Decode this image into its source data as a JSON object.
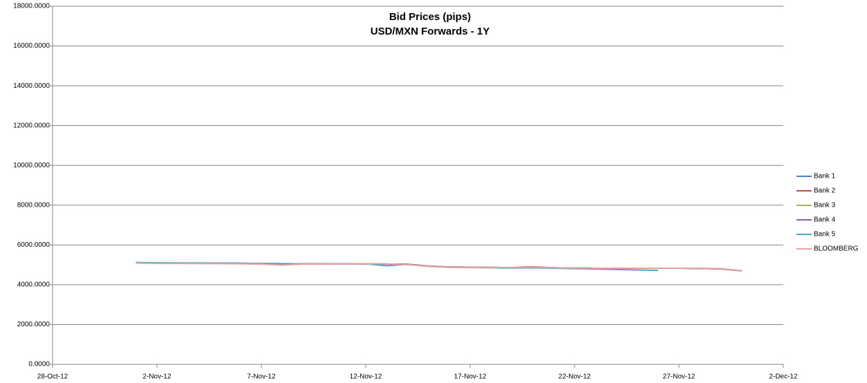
{
  "chart_data": {
    "type": "line",
    "title": "Bid Prices (pips)",
    "subtitle": "USD/MXN Forwards - 1Y",
    "x": [
      "2012-11-01",
      "2012-11-02",
      "2012-11-05",
      "2012-11-06",
      "2012-11-07",
      "2012-11-08",
      "2012-11-09",
      "2012-11-12",
      "2012-11-13",
      "2012-11-14",
      "2012-11-15",
      "2012-11-16",
      "2012-11-19",
      "2012-11-20",
      "2012-11-21",
      "2012-11-22",
      "2012-11-23",
      "2012-11-26",
      "2012-11-27",
      "2012-11-28",
      "2012-11-29",
      "2012-11-30"
    ],
    "series": [
      {
        "name": "Bank 1",
        "color": "#4a7ebb",
        "values": [
          5110,
          5100,
          5090,
          5080,
          5070,
          5060,
          5050,
          5050,
          5040,
          5030,
          4940,
          4890,
          4860,
          4870,
          4850,
          4840,
          4830,
          4830,
          4830,
          4820,
          4800,
          4700
        ]
      },
      {
        "name": "Bank 2",
        "color": "#be4b48",
        "values": [
          5100,
          5090,
          5080,
          5070,
          5060,
          5050,
          5050,
          5050,
          5040,
          5030,
          4940,
          4890,
          4860,
          4910,
          4850,
          4840,
          4830,
          4830,
          4830,
          4820,
          4800,
          4700
        ]
      },
      {
        "name": "Bank 3",
        "color": "#98b954",
        "values": [
          5100,
          5090,
          5080,
          5070,
          5060,
          5050,
          5050,
          5050,
          5040,
          5030,
          4940,
          4890,
          4860,
          4870,
          4850,
          4840,
          4830,
          4830,
          4830,
          4820,
          4800,
          4700
        ]
      },
      {
        "name": "Bank 4",
        "color": "#7d60a0",
        "values": [
          5100,
          5090,
          5080,
          5070,
          5060,
          5050,
          5050,
          5050,
          5040,
          5030,
          4940,
          4890,
          4860,
          4870,
          4850,
          4840,
          4830,
          4830,
          4830,
          4820,
          4800,
          4700
        ]
      },
      {
        "name": "Bank 5",
        "color": "#46aac5",
        "values": [
          5120,
          5100,
          5090,
          5080,
          5070,
          5060,
          5050,
          5050,
          4950,
          5030,
          4920,
          4880,
          4840,
          4850,
          4830,
          4810,
          4790,
          4720,
          null,
          null,
          null,
          null
        ]
      },
      {
        "name": "BLOOMBERG",
        "color": "#e8a0a0",
        "values": [
          5090,
          5070,
          5060,
          5050,
          5040,
          4990,
          5040,
          5050,
          5050,
          5010,
          4930,
          4880,
          4860,
          4890,
          4850,
          4840,
          4830,
          4830,
          4830,
          4830,
          4810,
          4700
        ]
      }
    ],
    "xlim": [
      "2012-10-28",
      "2012-12-02"
    ],
    "xticks": [
      {
        "value": "2012-10-28",
        "label": "28-Oct-12"
      },
      {
        "value": "2012-11-02",
        "label": "2-Nov-12"
      },
      {
        "value": "2012-11-07",
        "label": "7-Nov-12"
      },
      {
        "value": "2012-11-12",
        "label": "12-Nov-12"
      },
      {
        "value": "2012-11-17",
        "label": "17-Nov-12"
      },
      {
        "value": "2012-11-22",
        "label": "22-Nov-12"
      },
      {
        "value": "2012-11-27",
        "label": "27-Nov-12"
      },
      {
        "value": "2012-12-02",
        "label": "2-Dec-12"
      }
    ],
    "ylim": [
      0,
      18000
    ],
    "yticks": [
      {
        "value": 0,
        "label": "0.0000"
      },
      {
        "value": 2000,
        "label": "2000.0000"
      },
      {
        "value": 4000,
        "label": "4000.0000"
      },
      {
        "value": 6000,
        "label": "6000.0000"
      },
      {
        "value": 8000,
        "label": "8000.0000"
      },
      {
        "value": 10000,
        "label": "10000.0000"
      },
      {
        "value": 12000,
        "label": "12000.0000"
      },
      {
        "value": 14000,
        "label": "14000.0000"
      },
      {
        "value": 16000,
        "label": "16000.0000"
      },
      {
        "value": 18000,
        "label": "18000.0000"
      }
    ],
    "grid": true,
    "legend": "right"
  }
}
